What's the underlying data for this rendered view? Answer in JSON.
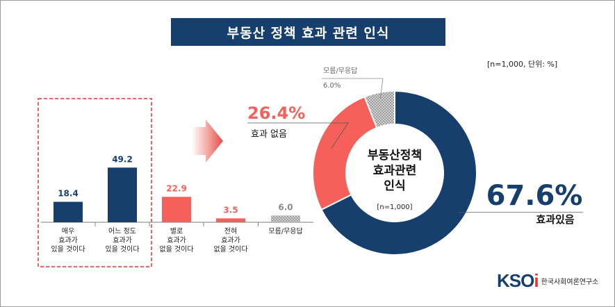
{
  "title": "부동산 정책 효과 관련 인식",
  "sample_note": "[n=1,000,  단위: %]",
  "logo": {
    "mark_k": "KSO",
    "mark_i": "i",
    "text": "한국사회여론연구소"
  },
  "colors": {
    "dark_blue": "#173f6e",
    "red": "#f5615a",
    "gray": "#8a8a8a"
  },
  "chart_data": [
    {
      "type": "bar",
      "categories": [
        [
          "매우",
          "효과가",
          "있을 것이다"
        ],
        [
          "어느 정도",
          "효과가",
          "있을 것이다"
        ],
        [
          "별로",
          "효과가",
          "없을 것이다"
        ],
        [
          "전혀",
          "효과가",
          "없을 것이다"
        ],
        [
          "모름/무응답"
        ]
      ],
      "values": [
        18.4,
        49.2,
        22.9,
        3.5,
        6.0
      ],
      "value_labels": [
        "18.4",
        "49.2",
        "22.9",
        "3.5",
        "6.0"
      ],
      "bar_colors": [
        "#173f6e",
        "#173f6e",
        "#f5615a",
        "#f5615a",
        "pattern-gray"
      ],
      "label_colors": [
        "#173f6e",
        "#173f6e",
        "#f5615a",
        "#f5615a",
        "#8a8a8a"
      ],
      "highlight_group": "dashed red box around first two bars",
      "ylim": [
        0,
        60
      ]
    },
    {
      "type": "pie",
      "donut": true,
      "center_lines": [
        "부동산정책",
        "효과관련",
        "인식"
      ],
      "center_note": "[n=1,000]",
      "slices": [
        {
          "name": "효과있음",
          "value": 67.6,
          "pct_label": "67.6%",
          "color": "#173f6e"
        },
        {
          "name": "효과 없음",
          "value": 26.4,
          "pct_label": "26.4%",
          "color": "#f5615a"
        },
        {
          "name": "모름/무응답",
          "value": 6.0,
          "pct_label": "6.0%",
          "color": "pattern-gray"
        }
      ],
      "start_angle_deg": 0,
      "direction": "clockwise"
    }
  ]
}
